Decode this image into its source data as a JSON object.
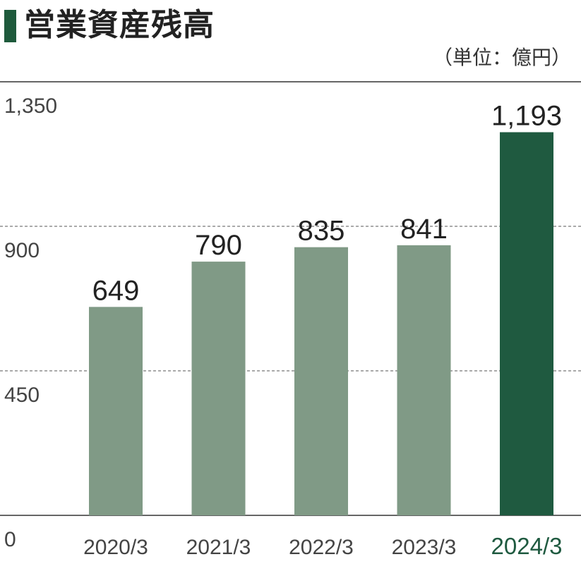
{
  "title": "営業資産残高",
  "unit": "（単位：億円）",
  "colors": {
    "title_bar": "#1e5a3c",
    "bar": "#809a86",
    "highlight_bar": "#1f5a40",
    "highlight_text": "#1f5a40",
    "grid": "#555555"
  },
  "chart_data": {
    "type": "bar",
    "categories": [
      "2020/3",
      "2021/3",
      "2022/3",
      "2023/3",
      "2024/3"
    ],
    "values": [
      649,
      790,
      835,
      841,
      1193
    ],
    "data_labels": [
      "649",
      "790",
      "835",
      "841",
      "1,193"
    ],
    "highlight_index": 4,
    "ylim": [
      0,
      1350
    ],
    "yticks": [
      0,
      450,
      900,
      1350
    ],
    "ytick_labels": [
      "0",
      "450",
      "900",
      "1,350"
    ],
    "grid": "dashed"
  }
}
